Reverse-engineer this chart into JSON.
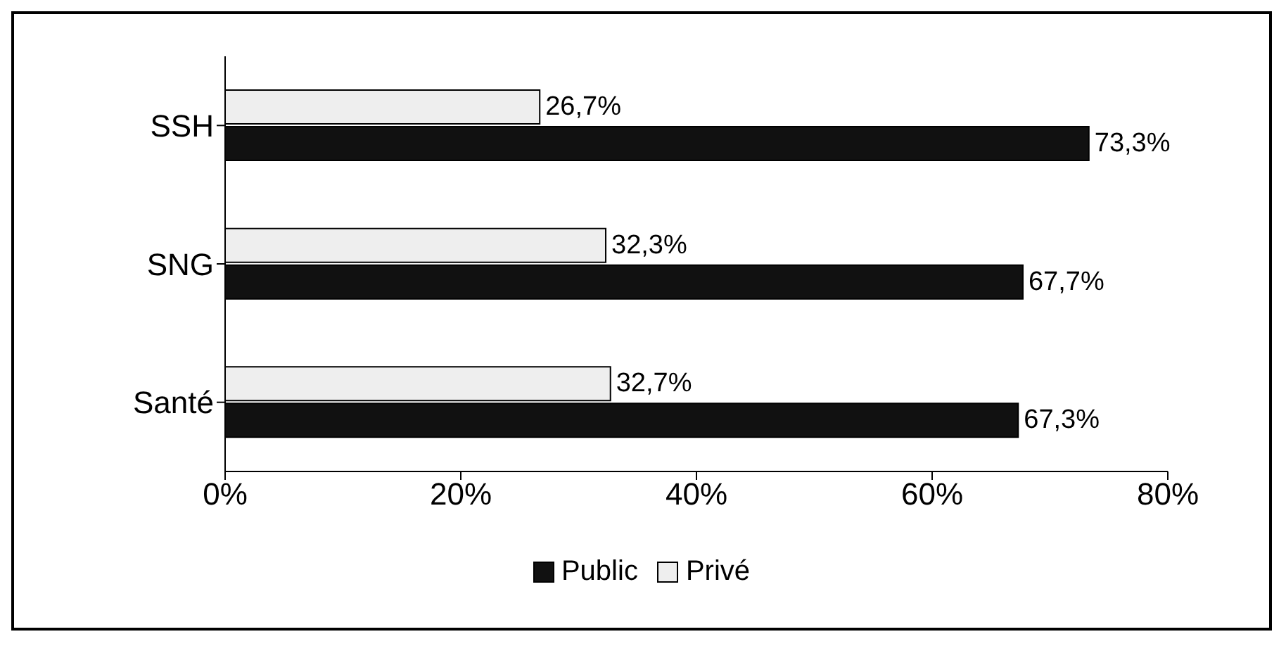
{
  "chart_data": {
    "type": "bar",
    "orientation": "horizontal",
    "categories": [
      "SSH",
      "SNG",
      "Santé"
    ],
    "series": [
      {
        "name": "Public",
        "color": "#111111",
        "values": [
          73.3,
          67.7,
          67.3
        ],
        "value_labels": [
          "73,3%",
          "67,7%",
          "67,3%"
        ]
      },
      {
        "name": "Privé",
        "color": "#eeeeee",
        "values": [
          26.7,
          32.3,
          32.7
        ],
        "value_labels": [
          "26,7%",
          "32,3%",
          "32,7%"
        ]
      }
    ],
    "xlim": [
      0,
      80
    ],
    "xticks": [
      {
        "value": 0,
        "label": "0%"
      },
      {
        "value": 20,
        "label": "20%"
      },
      {
        "value": 40,
        "label": "40%"
      },
      {
        "value": 60,
        "label": "60%"
      },
      {
        "value": 80,
        "label": "80%"
      }
    ],
    "grid": false,
    "legend": "bottom"
  }
}
